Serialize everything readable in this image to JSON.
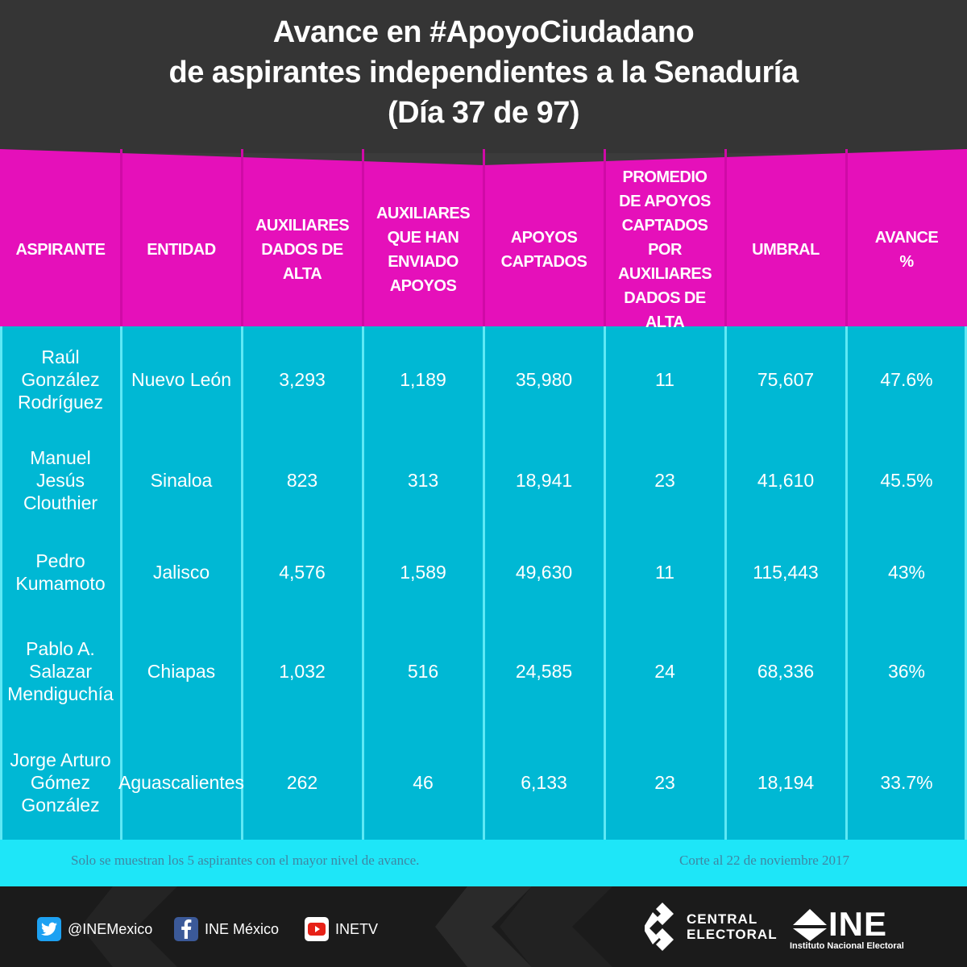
{
  "title": {
    "line1": "Avance en #ApoyoCiudadano",
    "line2": "de aspirantes independientes a la Senaduría",
    "line3": "(Día 37 de 97)"
  },
  "columns": [
    [
      "ASPIRANTE"
    ],
    [
      "ENTIDAD"
    ],
    [
      "AUXILIARES",
      "DADOS DE",
      "ALTA"
    ],
    [
      "AUXILIARES",
      "QUE HAN",
      "ENVIADO",
      "APOYOS"
    ],
    [
      "APOYOS",
      "CAPTADOS"
    ],
    [
      "PROMEDIO",
      "DE APOYOS",
      "CAPTADOS POR",
      "AUXILIARES",
      "DADOS DE",
      "ALTA"
    ],
    [
      "UMBRAL"
    ],
    [
      "AVANCE",
      "%"
    ]
  ],
  "rows": [
    {
      "aspirante": [
        "Raúl",
        "González",
        "Rodríguez"
      ],
      "entidad": "Nuevo León",
      "auxiliares_alta": "3,293",
      "auxiliares_enviado": "1,189",
      "apoyos": "35,980",
      "promedio": "11",
      "umbral": "75,607",
      "avance": "47.6%"
    },
    {
      "aspirante": [
        "Manuel",
        "Jesús",
        "Clouthier"
      ],
      "entidad": "Sinaloa",
      "auxiliares_alta": "823",
      "auxiliares_enviado": "313",
      "apoyos": "18,941",
      "promedio": "23",
      "umbral": "41,610",
      "avance": "45.5%"
    },
    {
      "aspirante": [
        "Pedro",
        "Kumamoto"
      ],
      "entidad": "Jalisco",
      "auxiliares_alta": "4,576",
      "auxiliares_enviado": "1,589",
      "apoyos": "49,630",
      "promedio": "11",
      "umbral": "115,443",
      "avance": "43%"
    },
    {
      "aspirante": [
        "Pablo A.",
        "Salazar",
        "Mendiguchía"
      ],
      "entidad": "Chiapas",
      "auxiliares_alta": "1,032",
      "auxiliares_enviado": "516",
      "apoyos": "24,585",
      "promedio": "24",
      "umbral": "68,336",
      "avance": "36%"
    },
    {
      "aspirante": [
        "Jorge Arturo",
        "Gómez",
        "González"
      ],
      "entidad": "Aguascalientes",
      "auxiliares_alta": "262",
      "auxiliares_enviado": "46",
      "apoyos": "6,133",
      "promedio": "23",
      "umbral": "18,194",
      "avance": "33.7%"
    }
  ],
  "footnote": {
    "left": "Solo se muestran los 5 aspirantes con el mayor nivel de avance.",
    "right": "Corte al 22 de noviembre 2017"
  },
  "footer": {
    "twitter": "@INEMexico",
    "facebook": "INE México",
    "youtube": "INETV",
    "central_electoral_line1": "CENTRAL",
    "central_electoral_line2": "ELECTORAL",
    "ine_big": "INE",
    "ine_small": "Instituto Nacional Electoral"
  },
  "colors": {
    "header_bg": "#353535",
    "table_head": "#e510ba",
    "table_body": "#00b8d4",
    "separator": "#5ee8f5",
    "footnote_bg": "#1ee6f8",
    "footer_bg": "#1b1b1b"
  },
  "icons": [
    "twitter-icon",
    "facebook-icon",
    "youtube-icon",
    "central-electoral-logo",
    "ine-logo"
  ]
}
